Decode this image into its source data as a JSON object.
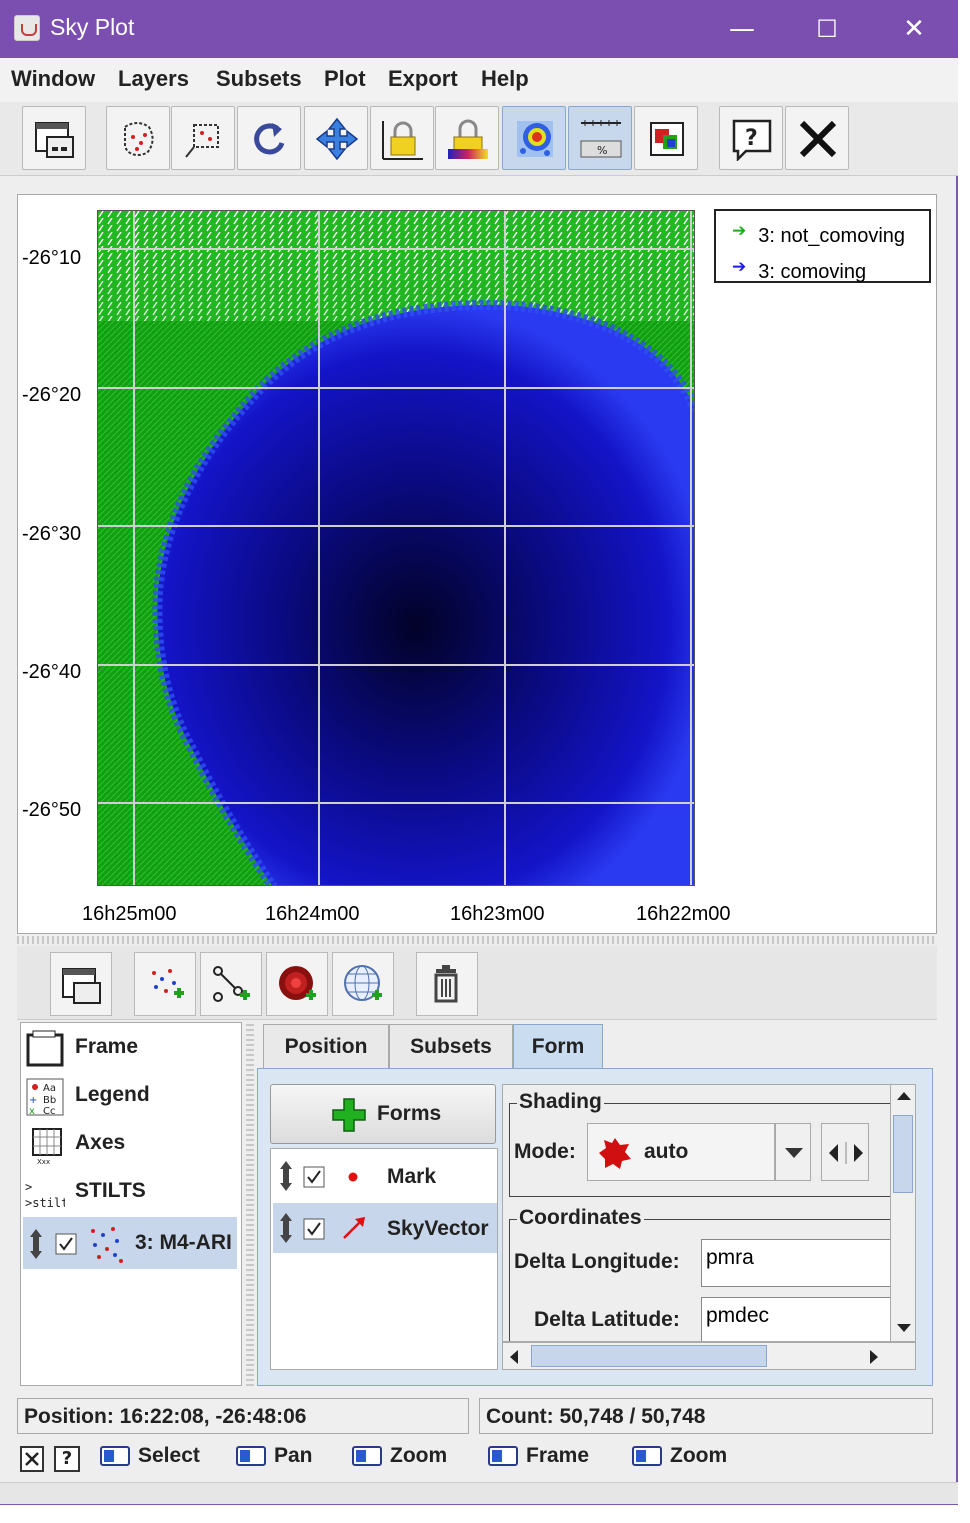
{
  "window": {
    "title": "Sky Plot",
    "controls": {
      "minimize": "—",
      "maximize": "☐",
      "close": "✕"
    },
    "title_bar_color": "#7a4fb0"
  },
  "menubar": {
    "items": [
      "Window",
      "Layers",
      "Subsets",
      "Plot",
      "Export",
      "Help"
    ]
  },
  "toolbar": {
    "icons": [
      "new-window-icon",
      "subset-from-region-icon",
      "subset-from-blob-icon",
      "replot-icon",
      "navigation-icon",
      "axis-lock-icon",
      "aux-lock-icon",
      "sketch-mode-icon",
      "progress-bar-icon",
      "export-icon",
      "help-icon",
      "close-icon"
    ],
    "active": [
      "sketch-mode-icon",
      "progress-bar-icon"
    ]
  },
  "plot": {
    "y_ticks": [
      "-26°10",
      "-26°20",
      "-26°30",
      "-26°40",
      "-26°50"
    ],
    "x_ticks": [
      "16h25m00",
      "16h24m00",
      "16h23m00",
      "16h22m00"
    ],
    "colors": {
      "not_comoving": "#13a313",
      "comoving": "#1a1ae0",
      "dark_center": "#020232"
    },
    "legend": [
      {
        "label": "3: not_comoving",
        "color": "#17b017"
      },
      {
        "label": "3: comoving",
        "color": "#1a1ae0"
      }
    ]
  },
  "control_toolbar": {
    "icons": [
      "new-window-icon",
      "add-position-plot-icon",
      "add-pair-plot-icon",
      "add-density-plot-icon",
      "add-sky-plot-icon",
      "delete-layer-icon"
    ]
  },
  "layers": {
    "items": [
      {
        "label": "Frame",
        "icon": "frame-icon"
      },
      {
        "label": "Legend",
        "icon": "legend-icon"
      },
      {
        "label": "Axes",
        "icon": "axes-icon"
      },
      {
        "label": "STILTS",
        "icon": "stilts-icon"
      },
      {
        "label": "3: M4-ARI",
        "icon": "layer-scatter-icon",
        "checked": true,
        "selected": true
      }
    ]
  },
  "tabs": {
    "items": [
      "Position",
      "Subsets",
      "Form"
    ],
    "active": "Form"
  },
  "forms": {
    "button_label": "Forms",
    "items": [
      {
        "label": "Mark",
        "checked": true,
        "icon": "mark-dot-icon"
      },
      {
        "label": "SkyVector",
        "checked": true,
        "icon": "vector-arrow-icon",
        "selected": true
      }
    ]
  },
  "config": {
    "shading_title": "Shading",
    "mode_label": "Mode:",
    "mode_value": "auto",
    "coordinates_title": "Coordinates",
    "delta_lon_label": "Delta Longitude:",
    "delta_lon_value": "pmra",
    "delta_lat_label": "Delta Latitude:",
    "delta_lat_value": "pmdec"
  },
  "status": {
    "position": "Position: 16:22:08, -26:48:06",
    "count": "Count: 50,748 / 50,748"
  },
  "hints": {
    "items": [
      "Select",
      "Pan",
      "Zoom",
      "Frame",
      "Zoom"
    ]
  }
}
